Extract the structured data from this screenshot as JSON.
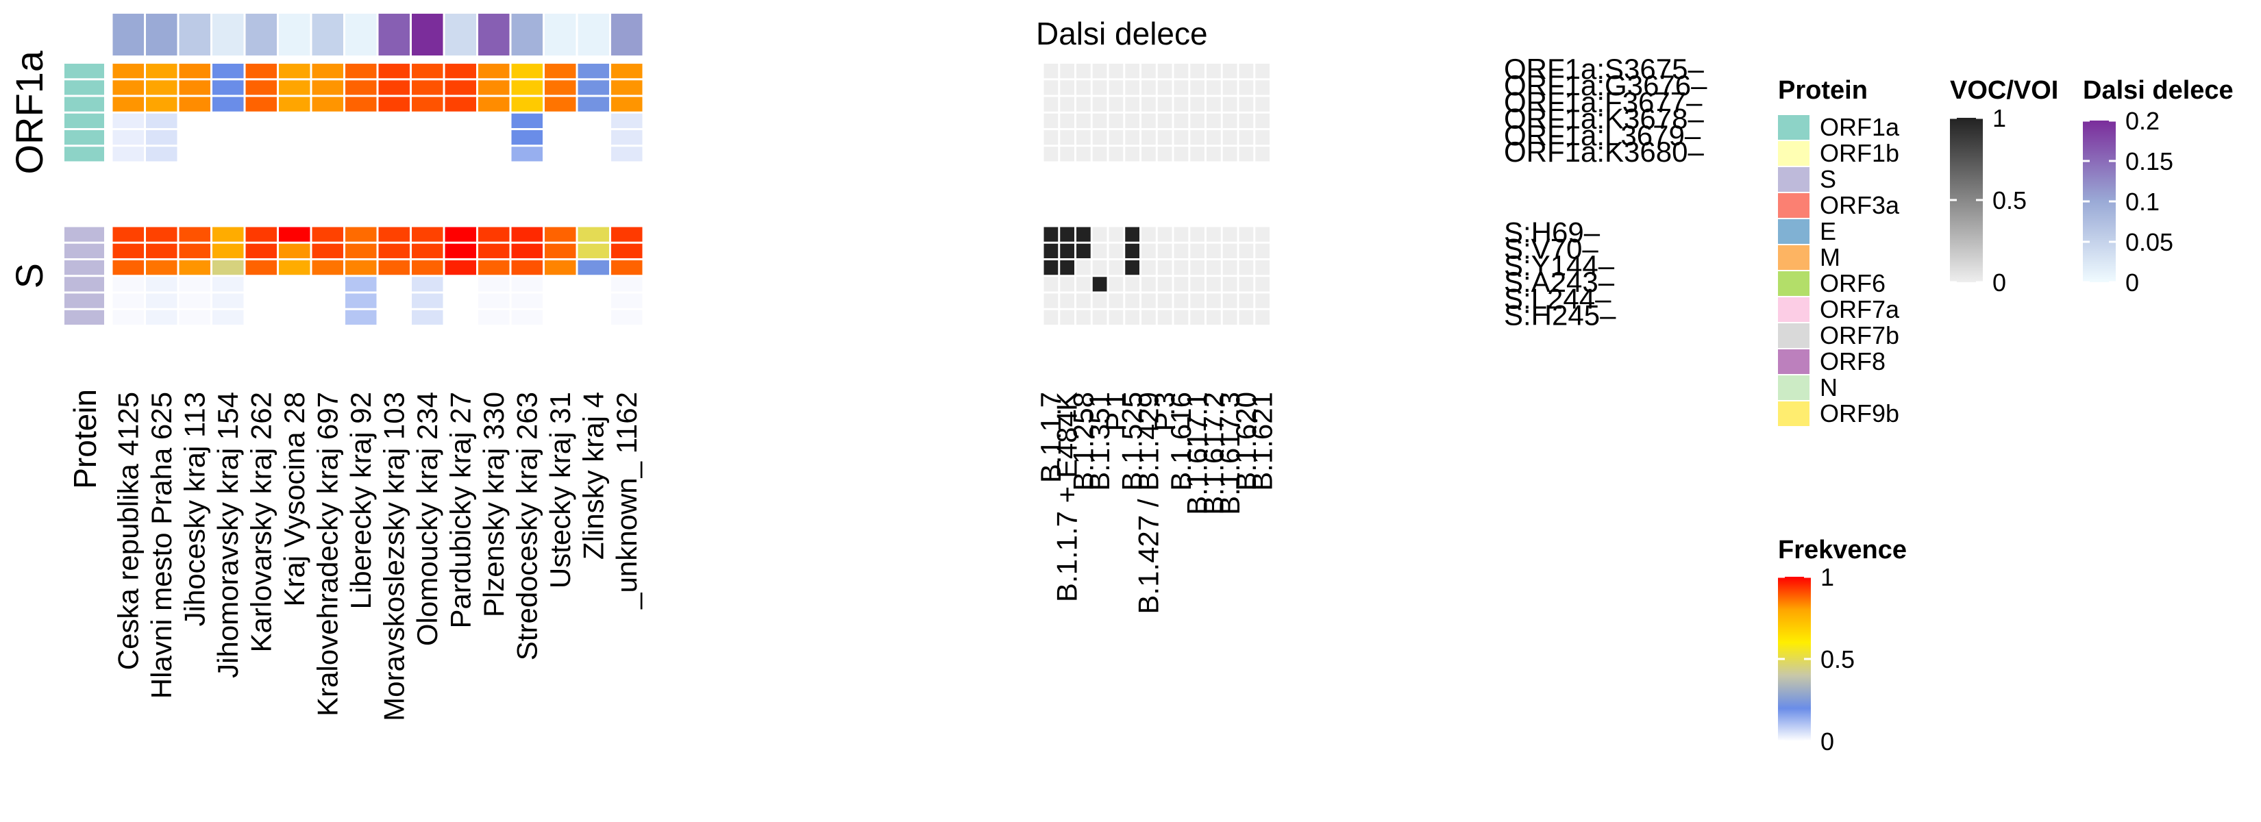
{
  "chart_data": {
    "type": "heatmap",
    "title": "",
    "columns": [
      "Ceska republika 4125",
      "Hlavni mesto Praha   625",
      "Jihocesky kraj   113",
      "Jihomoravsky kraj   154",
      "Karlovarsky kraj   262",
      "Kraj Vysocina    28",
      "Kralovehradecky kraj   697",
      "Liberecky kraj    92",
      "Moravskoslezsky kraj   103",
      "Olomoucky kraj   234",
      "Pardubicky kraj    27",
      "Plzensky kraj   330",
      "Stredocesky kraj   263",
      "Ustecky kraj    31",
      "Zlinsky kraj     4",
      "_unknown_ 1162"
    ],
    "rows": [
      "ORF1a:S3675–",
      "ORF1a:G3676–",
      "ORF1a:F3677–",
      "ORF1a:K3678–",
      "ORF1a:L3679–",
      "ORF1a:K3680–",
      "S:H69–",
      "S:V70–",
      "S:Y144–",
      "S:A243–",
      "S:L244–",
      "S:H245–"
    ],
    "row_groups": [
      {
        "label": "ORF1a",
        "rows": [
          0,
          1,
          2,
          3,
          4,
          5
        ],
        "color": "#8dd3c7"
      },
      {
        "label": "S",
        "rows": [
          6,
          7,
          8,
          9,
          10,
          11
        ],
        "color": "#bebada"
      }
    ],
    "frekvence": [
      [
        0.82,
        0.8,
        0.83,
        0.2,
        0.88,
        0.8,
        0.82,
        0.88,
        0.92,
        0.9,
        0.92,
        0.83,
        0.7,
        0.86,
        0.22,
        0.82
      ],
      [
        0.82,
        0.8,
        0.83,
        0.2,
        0.88,
        0.8,
        0.82,
        0.88,
        0.92,
        0.9,
        0.92,
        0.83,
        0.7,
        0.86,
        0.22,
        0.82
      ],
      [
        0.82,
        0.8,
        0.83,
        0.2,
        0.88,
        0.8,
        0.82,
        0.88,
        0.92,
        0.9,
        0.92,
        0.83,
        0.7,
        0.86,
        0.22,
        0.82
      ],
      [
        0.03,
        0.05,
        0.0,
        0.0,
        0.0,
        0.0,
        0.0,
        0.0,
        0.0,
        0.0,
        0.0,
        0.0,
        0.2,
        0.0,
        0.0,
        0.04
      ],
      [
        0.03,
        0.05,
        0.0,
        0.0,
        0.0,
        0.0,
        0.0,
        0.0,
        0.0,
        0.0,
        0.0,
        0.0,
        0.2,
        0.0,
        0.0,
        0.04
      ],
      [
        0.03,
        0.05,
        0.0,
        0.0,
        0.0,
        0.0,
        0.0,
        0.0,
        0.0,
        0.0,
        0.0,
        0.0,
        0.14,
        0.0,
        0.0,
        0.04
      ],
      [
        0.92,
        0.92,
        0.9,
        0.78,
        0.93,
        1.0,
        0.92,
        0.87,
        0.92,
        0.92,
        1.0,
        0.93,
        0.95,
        0.88,
        0.5,
        0.93
      ],
      [
        0.92,
        0.92,
        0.9,
        0.78,
        0.93,
        0.82,
        0.92,
        0.87,
        0.92,
        0.92,
        1.0,
        0.93,
        0.95,
        0.88,
        0.5,
        0.93
      ],
      [
        0.88,
        0.86,
        0.82,
        0.45,
        0.88,
        0.78,
        0.86,
        0.84,
        0.88,
        0.88,
        0.96,
        0.88,
        0.9,
        0.84,
        0.22,
        0.88
      ],
      [
        0.01,
        0.02,
        0.01,
        0.02,
        0.0,
        0.0,
        0.0,
        0.1,
        0.0,
        0.05,
        0.0,
        0.01,
        0.01,
        0.0,
        0.0,
        0.01
      ],
      [
        0.01,
        0.02,
        0.01,
        0.02,
        0.0,
        0.0,
        0.0,
        0.1,
        0.0,
        0.05,
        0.0,
        0.01,
        0.01,
        0.0,
        0.0,
        0.01
      ],
      [
        0.01,
        0.02,
        0.01,
        0.02,
        0.0,
        0.0,
        0.0,
        0.1,
        0.0,
        0.05,
        0.0,
        0.01,
        0.01,
        0.0,
        0.0,
        0.01
      ]
    ],
    "dalsi_delece_label": "Dalsi delece",
    "dalsi_delece": [
      0.1,
      0.1,
      0.06,
      0.02,
      0.07,
      0.01,
      0.05,
      0.01,
      0.16,
      0.2,
      0.04,
      0.16,
      0.09,
      0.01,
      0.01,
      0.11
    ],
    "voc_columns": [
      "B.1.1.7",
      "B.1.1.7 + E484K",
      "B.1.258",
      "B.1.351",
      "P.1",
      "B.1.525",
      "B.1.427 / B.1.429",
      "P.3",
      "B.1.616",
      "B.1.617.1",
      "B.1.617.2",
      "B.1.617.3",
      "B.1.620",
      "B.1.621"
    ],
    "voc_voi": [
      [
        0,
        0,
        0,
        0,
        0,
        0,
        0,
        0,
        0,
        0,
        0,
        0,
        0,
        0
      ],
      [
        0,
        0,
        0,
        0,
        0,
        0,
        0,
        0,
        0,
        0,
        0,
        0,
        0,
        0
      ],
      [
        0,
        0,
        0,
        0,
        0,
        0,
        0,
        0,
        0,
        0,
        0,
        0,
        0,
        0
      ],
      [
        0,
        0,
        0,
        0,
        0,
        0,
        0,
        0,
        0,
        0,
        0,
        0,
        0,
        0
      ],
      [
        0,
        0,
        0,
        0,
        0,
        0,
        0,
        0,
        0,
        0,
        0,
        0,
        0,
        0
      ],
      [
        0,
        0,
        0,
        0,
        0,
        0,
        0,
        0,
        0,
        0,
        0,
        0,
        0,
        0
      ],
      [
        1,
        1,
        1,
        0,
        0,
        1,
        0,
        0,
        0,
        0,
        0,
        0,
        0,
        0
      ],
      [
        1,
        1,
        1,
        0,
        0,
        1,
        0,
        0,
        0,
        0,
        0,
        0,
        0,
        0
      ],
      [
        1,
        1,
        0,
        0,
        0,
        1,
        0,
        0,
        0,
        0,
        0,
        0,
        0,
        0
      ],
      [
        0,
        0,
        0,
        1,
        0,
        0,
        0,
        0,
        0,
        0,
        0,
        0,
        0,
        0
      ],
      [
        0,
        0,
        0,
        0,
        0,
        0,
        0,
        0,
        0,
        0,
        0,
        0,
        0,
        0
      ],
      [
        0,
        0,
        0,
        0,
        0,
        0,
        0,
        0,
        0,
        0,
        0,
        0,
        0,
        0
      ]
    ],
    "protein_axis_label": "Protein",
    "legends": {
      "protein": {
        "title": "Protein",
        "items": [
          {
            "label": "ORF1a",
            "color": "#8dd3c7"
          },
          {
            "label": "ORF1b",
            "color": "#ffffb3"
          },
          {
            "label": "S",
            "color": "#bebada"
          },
          {
            "label": "ORF3a",
            "color": "#fb8072"
          },
          {
            "label": "E",
            "color": "#80b1d3"
          },
          {
            "label": "M",
            "color": "#fdb462"
          },
          {
            "label": "ORF6",
            "color": "#b3de69"
          },
          {
            "label": "ORF7a",
            "color": "#fccde5"
          },
          {
            "label": "ORF7b",
            "color": "#d9d9d9"
          },
          {
            "label": "ORF8",
            "color": "#bc80bd"
          },
          {
            "label": "N",
            "color": "#ccebc5"
          },
          {
            "label": "ORF9b",
            "color": "#ffed6f"
          }
        ]
      },
      "voc_voi": {
        "title": "VOC/VOI",
        "ticks": [
          "1",
          "0.5",
          "0"
        ],
        "tick_values": [
          1,
          0.5,
          0
        ]
      },
      "dalsi_delece": {
        "title": "Dalsi delece",
        "ticks": [
          "0.2",
          "0.15",
          "0.1",
          "0.05",
          "0"
        ],
        "tick_values": [
          0.2,
          0.15,
          0.1,
          0.05,
          0
        ]
      },
      "frekvence": {
        "title": "Frekvence",
        "ticks": [
          "1",
          "0.5",
          "0"
        ],
        "tick_values": [
          1,
          0.5,
          0
        ]
      }
    },
    "colors": {
      "frekvence_scale": [
        "#ffffff",
        "#6a8de8",
        "#c8c8a8",
        "#ffee00",
        "#ffa500",
        "#ff0000"
      ],
      "voc_scale": [
        "#eeeeee",
        "#222222"
      ],
      "dalsi_scale": [
        "#f0fbff",
        "#9aaad6",
        "#7b2d9b"
      ]
    }
  }
}
